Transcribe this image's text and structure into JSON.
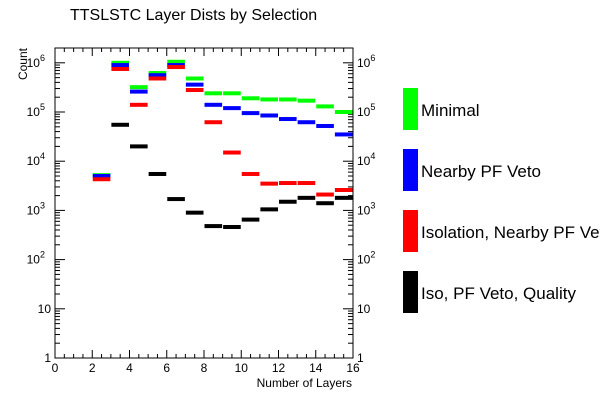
{
  "chart_data": {
    "type": "step-histogram",
    "title": "TTSLSTC Layer Dists by Selection",
    "xlabel": "Number of Layers",
    "ylabel": "Count",
    "xlim": [
      0,
      16
    ],
    "ylim": [
      1,
      2000000
    ],
    "yscale": "log",
    "grid": false,
    "legend_position": "right",
    "x_ticks": [
      "0",
      "2",
      "4",
      "6",
      "8",
      "10",
      "12",
      "14",
      "16"
    ],
    "y_ticks": [
      {
        "base": "1",
        "exp": ""
      },
      {
        "base": "10",
        "exp": ""
      },
      {
        "base": "10",
        "exp": "2"
      },
      {
        "base": "10",
        "exp": "3"
      },
      {
        "base": "10",
        "exp": "4"
      },
      {
        "base": "10",
        "exp": "5"
      },
      {
        "base": "10",
        "exp": "6"
      }
    ],
    "y_tick_values": [
      1,
      10,
      100,
      1000,
      10000,
      100000,
      1000000
    ],
    "bin_starts": [
      2,
      3,
      4,
      5,
      6,
      7,
      8,
      9,
      10,
      11,
      12,
      13,
      14,
      15
    ],
    "bin_width": 1,
    "series": [
      {
        "name": "Minimal",
        "color": "#00ff00",
        "values": [
          5200,
          1000000,
          320000,
          620000,
          1050000,
          480000,
          240000,
          240000,
          190000,
          180000,
          180000,
          170000,
          130000,
          100000
        ]
      },
      {
        "name": "Nearby PF Veto",
        "color": "#0000ff",
        "values": [
          5000,
          900000,
          260000,
          560000,
          900000,
          360000,
          140000,
          120000,
          95000,
          85000,
          72000,
          62000,
          52000,
          35000
        ]
      },
      {
        "name": "Isolation, Nearby PF Veto",
        "color": "#ff0000",
        "values": [
          4300,
          750000,
          140000,
          480000,
          820000,
          280000,
          62000,
          15000,
          5500,
          3500,
          3600,
          3600,
          2100,
          2600
        ]
      },
      {
        "name": "Iso, PF Veto, Quality",
        "color": "#000000",
        "values": [
          null,
          55000,
          20000,
          5500,
          1700,
          900,
          480,
          460,
          650,
          1050,
          1500,
          1800,
          1400,
          1800
        ]
      }
    ]
  }
}
